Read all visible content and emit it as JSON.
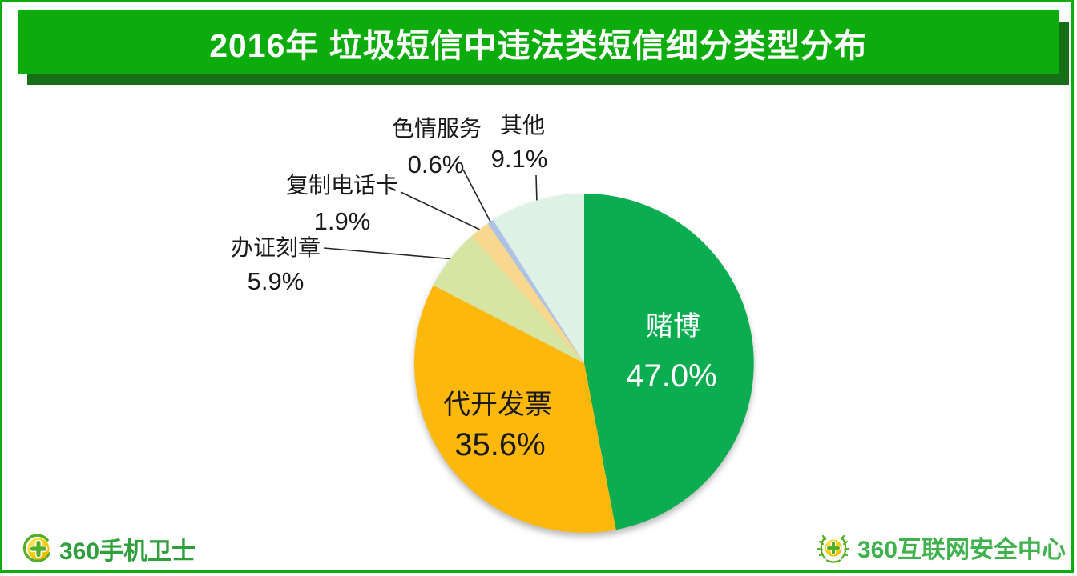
{
  "header": {
    "title": "2016年 垃圾短信中违法类短信细分类型分布"
  },
  "chart_data": {
    "type": "pie",
    "title": "2016年 垃圾短信中违法类短信细分类型分布",
    "unit": "percent",
    "start_angle_deg": 0,
    "direction": "clockwise",
    "center": [
      729,
      454
    ],
    "radius": 212,
    "slices": [
      {
        "id": "gambling",
        "label": "赌博",
        "value": 47.0,
        "pct_label": "47.0%",
        "color": "#0CAD51",
        "placement": "inside",
        "label_color": "#FFFFFF",
        "name_pos": [
          840,
          419
        ],
        "pct_pos": [
          838,
          483
        ]
      },
      {
        "id": "invoice-issuing",
        "label": "代开发票",
        "value": 35.6,
        "pct_label": "35.6%",
        "color": "#FEB80B",
        "placement": "inside",
        "label_color": "#1A1A1A",
        "name_pos": [
          621,
          517
        ],
        "pct_pos": [
          624,
          569
        ]
      },
      {
        "id": "cert-seal-forging",
        "label": "办证刻章",
        "value": 5.9,
        "pct_label": "5.9%",
        "color": "#D7E5A2",
        "placement": "outside",
        "label_color": "#1A1A1A",
        "name_pos": [
          344,
          319
        ],
        "pct_pos": [
          344,
          362
        ],
        "callout": {
          "line_from": [
            404,
            310
          ]
        }
      },
      {
        "id": "phone-card-cloning",
        "label": "复制电话卡",
        "value": 1.9,
        "pct_label": "1.9%",
        "color": "#F8D78E",
        "placement": "outside",
        "label_color": "#1A1A1A",
        "name_pos": [
          427,
          241
        ],
        "pct_pos": [
          427,
          287
        ],
        "callout": {
          "line_from": [
            500,
            240
          ]
        }
      },
      {
        "id": "porn-services",
        "label": "色情服务",
        "value": 0.6,
        "pct_label": "0.6%",
        "color": "#AEC2E8",
        "placement": "outside",
        "label_color": "#1A1A1A",
        "name_pos": [
          545,
          170
        ],
        "pct_pos": [
          544,
          216
        ],
        "callout": {
          "line_from": [
            578,
            212
          ]
        }
      },
      {
        "id": "other",
        "label": "其他",
        "value": 9.1,
        "pct_label": "9.1%",
        "color": "#DDF1E4",
        "placement": "outside",
        "label_color": "#1A1A1A",
        "name_pos": [
          652,
          166
        ],
        "pct_pos": [
          648,
          209
        ],
        "callout": {
          "line_from": [
            669,
            219
          ]
        }
      }
    ],
    "legend": "none",
    "leader_line_color": "#262626"
  },
  "footer": {
    "left_logo": {
      "text": "360手机卫士"
    },
    "right_logo": {
      "text": "360互联网安全中心"
    }
  },
  "colors": {
    "banner_green": "#0DAC0D",
    "banner_shadow_green": "#166F16",
    "frame_green": "#0DAC0D",
    "footer_left_text_green": "#2FA03C",
    "footer_right_text_green": "#3FB14D"
  }
}
